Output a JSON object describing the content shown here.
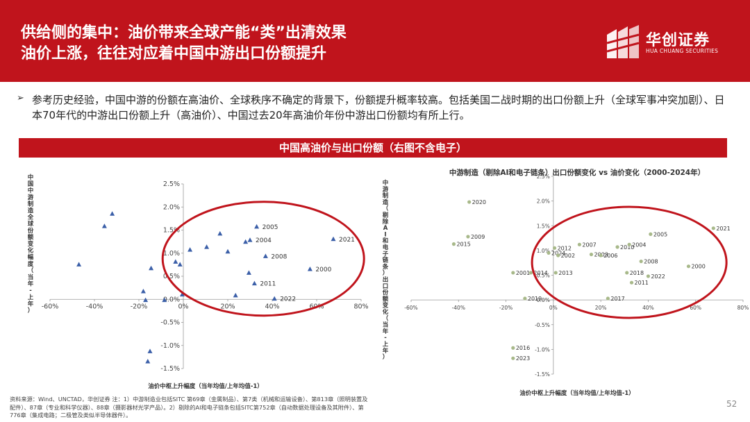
{
  "header": {
    "title_line1": "供给侧的集中：油价带来全球产能“类”出清效果",
    "title_line2": "油价上涨，往往对应着中国中游出口份额提升",
    "logo_cn": "华创证券",
    "logo_en": "HUA CHUANG SECURITIES"
  },
  "bullet": {
    "marker": "➢",
    "text": "参考历史经验，中国中游的份额在高油价、全球秩序不确定的背景下，份额提升概率较高。包括美国二战时期的出口份额上升（全球军事冲突加剧）、日本70年代的中游出口份额上升（高油价）、中国过去20年高油价年份中游出口份额均有所上行。"
  },
  "banner": {
    "text": "中国高油价与出口份额（右图不含电子）"
  },
  "chart_data": [
    {
      "type": "scatter",
      "title": "",
      "xlabel": "油价中枢上升幅度（当年均值/上年均值-1）",
      "ylabel": "中国中游制造全球份额变化幅度（当年-上年）",
      "xlim": [
        -0.6,
        0.8
      ],
      "ylim": [
        -0.015,
        0.025
      ],
      "x_ticks": [
        "-60%",
        "-40%",
        "-20%",
        "0%",
        "20%",
        "40%",
        "60%",
        "80%"
      ],
      "y_ticks": [
        "2.5%",
        "2.0%",
        "1.5%",
        "1.0%",
        "0.5%",
        "0.0%",
        "-0.5%",
        "-1.0%",
        "-1.5%"
      ],
      "marker_color": "#3b5fa8",
      "highlight_color": "#c0141c",
      "points": [
        {
          "x": -0.47,
          "y": 0.0075,
          "label": ""
        },
        {
          "x": -0.355,
          "y": 0.0158,
          "label": ""
        },
        {
          "x": -0.32,
          "y": 0.0185,
          "label": ""
        },
        {
          "x": -0.145,
          "y": 0.0067,
          "label": ""
        },
        {
          "x": -0.18,
          "y": 0.0017,
          "label": ""
        },
        {
          "x": -0.17,
          "y": -0.0002,
          "label": ""
        },
        {
          "x": -0.15,
          "y": -0.0113,
          "label": ""
        },
        {
          "x": -0.16,
          "y": -0.0135,
          "label": ""
        },
        {
          "x": -0.085,
          "y": -0.0002,
          "label": ""
        },
        {
          "x": -0.035,
          "y": 0.0081,
          "label": ""
        },
        {
          "x": -0.015,
          "y": 0.0075,
          "label": ""
        },
        {
          "x": -0.005,
          "y": 0.001,
          "label": ""
        },
        {
          "x": 0.03,
          "y": 0.0107,
          "label": ""
        },
        {
          "x": 0.105,
          "y": 0.0113,
          "label": ""
        },
        {
          "x": 0.165,
          "y": 0.0142,
          "label": ""
        },
        {
          "x": 0.2,
          "y": 0.0103,
          "label": ""
        },
        {
          "x": 0.28,
          "y": 0.0124,
          "label": ""
        },
        {
          "x": 0.3,
          "y": 0.0128,
          "label": "2004"
        },
        {
          "x": 0.33,
          "y": 0.0157,
          "label": "2005"
        },
        {
          "x": 0.37,
          "y": 0.0093,
          "label": "2008"
        },
        {
          "x": 0.295,
          "y": 0.0057,
          "label": ""
        },
        {
          "x": 0.32,
          "y": 0.0034,
          "label": "2011"
        },
        {
          "x": 0.235,
          "y": 0.0008,
          "label": ""
        },
        {
          "x": 0.41,
          "y": 0.0001,
          "label": "2022"
        },
        {
          "x": 0.57,
          "y": 0.0065,
          "label": "2000"
        },
        {
          "x": 0.675,
          "y": 0.013,
          "label": "2021"
        }
      ]
    },
    {
      "type": "scatter",
      "title": "中游制造（剔除AI和电子链条）出口份额变化 vs 油价变化（2000-2024年）",
      "xlabel": "油价中枢上升幅度（当年均值/上年均值-1）",
      "ylabel": "中游制造（剔除AI和电子链条）出口份额变化（当年-上年）",
      "xlim": [
        -0.6,
        0.8
      ],
      "ylim": [
        -0.015,
        0.025
      ],
      "x_ticks": [
        "-60%",
        "-40%",
        "-20%",
        "0%",
        "20%",
        "40%",
        "60%",
        "80%"
      ],
      "y_ticks": [
        "2.5%",
        "2.0%",
        "1.5%",
        "1.0%",
        "0.5%",
        "0.0%",
        "-0.5%",
        "-1.0%",
        "-1.5%"
      ],
      "marker_color": "#a8b98a",
      "highlight_color": "#c0141c",
      "points": [
        {
          "x": -0.355,
          "y": 0.0198,
          "label": "2020"
        },
        {
          "x": -0.42,
          "y": 0.0113,
          "label": "2015"
        },
        {
          "x": -0.36,
          "y": 0.0128,
          "label": "2009"
        },
        {
          "x": -0.17,
          "y": 0.0055,
          "label": "2001"
        },
        {
          "x": -0.095,
          "y": 0.0055,
          "label": "2014"
        },
        {
          "x": -0.12,
          "y": 0.0003,
          "label": "2019"
        },
        {
          "x": -0.17,
          "y": -0.0097,
          "label": "2016"
        },
        {
          "x": -0.17,
          "y": -0.0118,
          "label": "2023"
        },
        {
          "x": -0.02,
          "y": 0.0095,
          "label": "2024"
        },
        {
          "x": 0.005,
          "y": 0.0105,
          "label": "2012"
        },
        {
          "x": 0.02,
          "y": 0.009,
          "label": "2002"
        },
        {
          "x": 0.01,
          "y": 0.0055,
          "label": "2013"
        },
        {
          "x": 0.11,
          "y": 0.0112,
          "label": "2007"
        },
        {
          "x": 0.16,
          "y": 0.0092,
          "label": "2003"
        },
        {
          "x": 0.2,
          "y": 0.009,
          "label": "2006"
        },
        {
          "x": 0.27,
          "y": 0.0107,
          "label": "2010"
        },
        {
          "x": 0.32,
          "y": 0.0112,
          "label": "2004"
        },
        {
          "x": 0.41,
          "y": 0.0133,
          "label": "2005"
        },
        {
          "x": 0.37,
          "y": 0.0078,
          "label": "2008"
        },
        {
          "x": 0.31,
          "y": 0.0055,
          "label": "2018"
        },
        {
          "x": 0.33,
          "y": 0.0035,
          "label": "2011"
        },
        {
          "x": 0.4,
          "y": 0.0048,
          "label": "2022"
        },
        {
          "x": 0.57,
          "y": 0.0068,
          "label": "2000"
        },
        {
          "x": 0.675,
          "y": 0.0145,
          "label": "2021"
        },
        {
          "x": 0.23,
          "y": 0.0003,
          "label": "2017"
        }
      ]
    }
  ],
  "source_note": "资料来源：Wind、UNCTAD，华创证券 注：1）中游制造业包括SITC 第69章（金属制品）、第7类（机械和运输设备）、第813章（照明装置及配件）、87章（专业和科学仪器）、88章（摄影器材光学产品）。2）剔除的AI和电子链条包括SITC第752章（自动数据处理设备及其附件）、第776章（集成电路；二极管及类似半导体器件）。",
  "page_number": "52"
}
